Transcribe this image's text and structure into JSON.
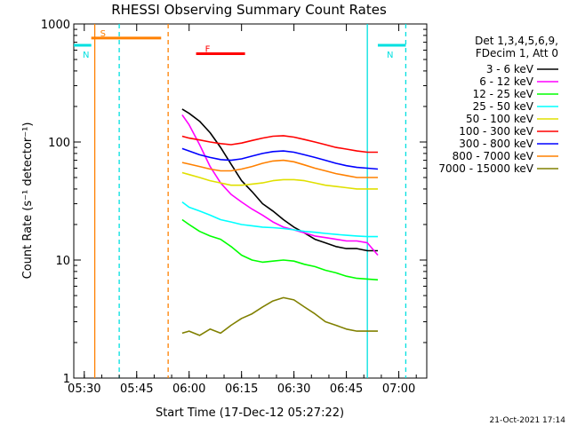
{
  "chart_data": {
    "type": "line",
    "title": "RHESSI Observing Summary Count Rates",
    "xlabel": "Start Time (17-Dec-12 05:27:22)",
    "ylabel": "Count Rate (s⁻¹ detector⁻¹)",
    "y_scale": "log",
    "ylim": [
      1,
      1000
    ],
    "xlim": [
      "05:27",
      "07:08"
    ],
    "x_ticks": [
      "05:30",
      "05:45",
      "06:00",
      "06:15",
      "06:30",
      "06:45",
      "07:00"
    ],
    "y_ticks": [
      "1",
      "10",
      "100",
      "1000"
    ],
    "legend_header": [
      "Det 1,3,4,5,6,9,",
      "FDecim 1, Att 0"
    ],
    "legend_position": "right",
    "footer": "21-Oct-2021 17:14",
    "grid": false,
    "flags": [
      {
        "label": "S",
        "color": "#ff8000",
        "start": "05:32",
        "end": "05:52",
        "level": 760
      },
      {
        "label": "N",
        "color": "#00e0e0",
        "start": "05:27",
        "end": "05:32",
        "level": 660
      },
      {
        "label": "N",
        "color": "#00e0e0",
        "start": "06:54",
        "end": "07:02",
        "level": 660
      },
      {
        "label": "F",
        "color": "#ff0000",
        "start": "06:02",
        "end": "06:16",
        "level": 560
      }
    ],
    "markers": [
      {
        "time": "05:33",
        "color": "#ff8000",
        "style": "solid"
      },
      {
        "time": "05:40",
        "color": "#00e0e0",
        "style": "dashed"
      },
      {
        "time": "05:54",
        "color": "#ff8000",
        "style": "dashed"
      },
      {
        "time": "06:51",
        "color": "#00e0e0",
        "style": "solid"
      },
      {
        "time": "07:02",
        "color": "#00e0e0",
        "style": "dashed"
      }
    ],
    "series": [
      {
        "name": "3 - 6 keV",
        "color": "#000000",
        "x": [
          "05:58",
          "06:00",
          "06:03",
          "06:06",
          "06:09",
          "06:12",
          "06:15",
          "06:18",
          "06:21",
          "06:24",
          "06:27",
          "06:30",
          "06:33",
          "06:36",
          "06:39",
          "06:42",
          "06:45",
          "06:48",
          "06:51",
          "06:54"
        ],
        "y": [
          190,
          175,
          150,
          120,
          90,
          65,
          47,
          38,
          30,
          26,
          22,
          19,
          17,
          15,
          14,
          13,
          12.5,
          12.5,
          12,
          12
        ]
      },
      {
        "name": "6 - 12 keV",
        "color": "#ff00ff",
        "x": [
          "05:58",
          "06:00",
          "06:03",
          "06:06",
          "06:09",
          "06:12",
          "06:15",
          "06:18",
          "06:21",
          "06:24",
          "06:27",
          "06:30",
          "06:33",
          "06:36",
          "06:39",
          "06:42",
          "06:45",
          "06:48",
          "06:51",
          "06:54"
        ],
        "y": [
          170,
          140,
          95,
          62,
          45,
          36,
          31,
          27,
          24,
          21,
          19,
          18,
          17,
          16,
          15.5,
          15,
          14.5,
          14.5,
          14,
          11
        ]
      },
      {
        "name": "12 - 25 keV",
        "color": "#00ff00",
        "x": [
          "05:58",
          "06:00",
          "06:03",
          "06:06",
          "06:09",
          "06:12",
          "06:15",
          "06:18",
          "06:21",
          "06:24",
          "06:27",
          "06:30",
          "06:33",
          "06:36",
          "06:39",
          "06:42",
          "06:45",
          "06:48",
          "06:51",
          "06:54"
        ],
        "y": [
          22,
          20,
          17.5,
          16,
          15,
          13,
          11,
          10,
          9.6,
          9.8,
          10,
          9.8,
          9.2,
          8.8,
          8.2,
          7.8,
          7.3,
          7,
          6.9,
          6.8
        ]
      },
      {
        "name": "25 - 50 keV",
        "color": "#00ffff",
        "x": [
          "05:58",
          "06:00",
          "06:03",
          "06:06",
          "06:09",
          "06:12",
          "06:15",
          "06:18",
          "06:21",
          "06:24",
          "06:27",
          "06:30",
          "06:33",
          "06:36",
          "06:39",
          "06:42",
          "06:45",
          "06:48",
          "06:51",
          "06:54"
        ],
        "y": [
          31,
          28,
          26,
          24,
          22,
          21,
          20,
          19.5,
          19,
          18.8,
          18.5,
          18,
          17.5,
          17.2,
          16.8,
          16.5,
          16.2,
          16,
          15.8,
          15.8
        ]
      },
      {
        "name": "50 - 100 keV",
        "color": "#e0e000",
        "x": [
          "05:58",
          "06:00",
          "06:03",
          "06:06",
          "06:09",
          "06:12",
          "06:15",
          "06:18",
          "06:21",
          "06:24",
          "06:27",
          "06:30",
          "06:33",
          "06:36",
          "06:39",
          "06:42",
          "06:45",
          "06:48",
          "06:51",
          "06:54"
        ],
        "y": [
          55,
          53,
          50,
          47,
          45,
          43,
          43,
          44,
          45,
          47,
          48,
          48,
          47,
          45,
          43,
          42,
          41,
          40,
          40,
          40
        ]
      },
      {
        "name": "100 - 300 keV",
        "color": "#ff0000",
        "x": [
          "05:58",
          "06:00",
          "06:03",
          "06:06",
          "06:09",
          "06:12",
          "06:15",
          "06:18",
          "06:21",
          "06:24",
          "06:27",
          "06:30",
          "06:33",
          "06:36",
          "06:39",
          "06:42",
          "06:45",
          "06:48",
          "06:51",
          "06:54"
        ],
        "y": [
          112,
          108,
          104,
          100,
          97,
          95,
          98,
          103,
          108,
          112,
          113,
          110,
          105,
          100,
          95,
          90,
          87,
          84,
          82,
          82
        ]
      },
      {
        "name": "300 - 800 keV",
        "color": "#0000ff",
        "x": [
          "05:58",
          "06:00",
          "06:03",
          "06:06",
          "06:09",
          "06:12",
          "06:15",
          "06:18",
          "06:21",
          "06:24",
          "06:27",
          "06:30",
          "06:33",
          "06:36",
          "06:39",
          "06:42",
          "06:45",
          "06:48",
          "06:51",
          "06:54"
        ],
        "y": [
          88,
          84,
          78,
          74,
          71,
          70,
          72,
          76,
          80,
          83,
          84,
          82,
          78,
          74,
          70,
          66,
          63,
          61,
          60,
          59
        ]
      },
      {
        "name": "800 - 7000 keV",
        "color": "#ff8000",
        "x": [
          "05:58",
          "06:00",
          "06:03",
          "06:06",
          "06:09",
          "06:12",
          "06:15",
          "06:18",
          "06:21",
          "06:24",
          "06:27",
          "06:30",
          "06:33",
          "06:36",
          "06:39",
          "06:42",
          "06:45",
          "06:48",
          "06:51",
          "06:54"
        ],
        "y": [
          67,
          65,
          62,
          59,
          57,
          57,
          59,
          62,
          66,
          69,
          70,
          68,
          64,
          60,
          57,
          54,
          52,
          50,
          50,
          50
        ]
      },
      {
        "name": "7000 - 15000 keV",
        "color": "#808000",
        "x": [
          "05:58",
          "06:00",
          "06:03",
          "06:06",
          "06:09",
          "06:12",
          "06:15",
          "06:18",
          "06:21",
          "06:24",
          "06:27",
          "06:30",
          "06:33",
          "06:36",
          "06:39",
          "06:42",
          "06:45",
          "06:48",
          "06:51",
          "06:54"
        ],
        "y": [
          2.4,
          2.5,
          2.3,
          2.6,
          2.4,
          2.8,
          3.2,
          3.5,
          4,
          4.5,
          4.8,
          4.6,
          4,
          3.5,
          3,
          2.8,
          2.6,
          2.5,
          2.5,
          2.5
        ]
      }
    ]
  }
}
